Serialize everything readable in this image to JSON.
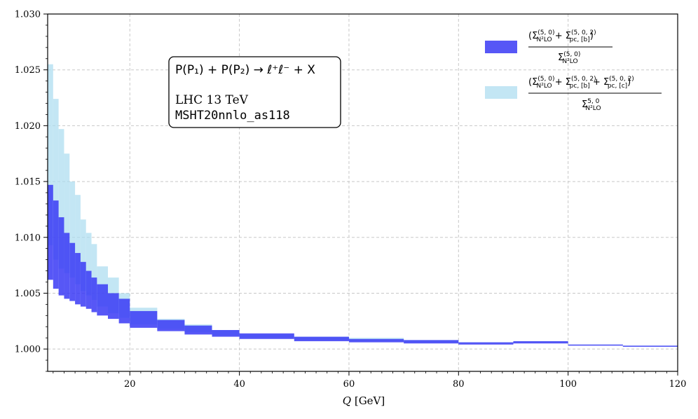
{
  "chart_data": {
    "type": "area",
    "xlabel_var": "Q",
    "xlabel_unit": "[GeV]",
    "xlim": [
      5,
      120
    ],
    "ylim": [
      0.998,
      1.03
    ],
    "xticks": [
      20,
      40,
      60,
      80,
      100,
      120
    ],
    "yticks": [
      1.0,
      1.005,
      1.01,
      1.015,
      1.02,
      1.025,
      1.03
    ],
    "xtick_labels": [
      "20",
      "40",
      "60",
      "80",
      "100",
      "120"
    ],
    "ytick_labels": [
      "1.000",
      "1.005",
      "1.010",
      "1.015",
      "1.020",
      "1.025",
      "1.030"
    ],
    "grid": true,
    "legend_position": "top-right",
    "annotation": {
      "process_line": "P(P₁) + P(P₂) → ℓ⁺ℓ⁻ + X",
      "line2": "LHC 13 TeV",
      "line3": "MSHT20nnlo_as118"
    },
    "bin_edges": [
      5,
      6,
      7,
      8,
      9,
      10,
      11,
      12,
      13,
      14,
      16,
      18,
      20,
      25,
      30,
      35,
      40,
      50,
      60,
      70,
      80,
      90,
      100,
      110,
      120
    ],
    "series": [
      {
        "legend_label": "(Σ(5,0)N²LO + Σ(5,0,2)pc,[b]) / Σ(5,0)N²LO",
        "color": "#3a3af5",
        "opacity": 0.85,
        "lower": [
          1.0062,
          1.0054,
          1.0048,
          1.0045,
          1.0043,
          1.004,
          1.0038,
          1.0036,
          1.0033,
          1.003,
          1.0027,
          1.0023,
          1.0019,
          1.0016,
          1.0013,
          1.0011,
          1.0009,
          1.0007,
          1.0006,
          1.0005,
          1.0004,
          1.0005,
          1.0003,
          1.0002
        ],
        "upper": [
          1.0147,
          1.0133,
          1.0118,
          1.0104,
          1.0095,
          1.0086,
          1.0078,
          1.007,
          1.0064,
          1.0058,
          1.005,
          1.0045,
          1.0034,
          1.0026,
          1.0021,
          1.0017,
          1.0014,
          1.0011,
          1.0009,
          1.0008,
          1.0006,
          1.0007,
          1.0004,
          1.0003
        ]
      },
      {
        "legend_label": "(Σ(5,0)N²LO + Σ(5,0,2)pc,[b] + Σ(5,0,2)pc,[c]) / Σ5,0N²LO",
        "color": "#a9dcf0",
        "opacity": 0.7,
        "lower": [
          1.0093,
          1.008,
          1.0072,
          1.0068,
          1.0064,
          1.0058,
          1.0052,
          1.0048,
          1.0044,
          1.0038,
          1.0032,
          1.0028,
          1.0022,
          1.0018,
          1.0015,
          1.0012,
          1.001,
          1.0008,
          1.0007,
          1.0006,
          1.0005,
          1.0006,
          1.0004,
          1.0003
        ],
        "upper": [
          1.0255,
          1.0224,
          1.0197,
          1.0175,
          1.015,
          1.0138,
          1.0116,
          1.0104,
          1.0094,
          1.0074,
          1.0064,
          1.005,
          1.0037,
          1.0027,
          1.0022,
          1.0017,
          1.0013,
          1.0011,
          1.001,
          1.0008,
          1.0006,
          1.0007,
          1.0004,
          1.0003
        ]
      }
    ]
  }
}
